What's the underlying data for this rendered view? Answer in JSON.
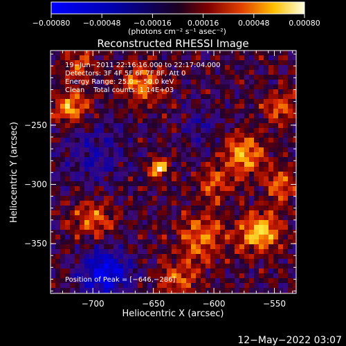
{
  "chart_data": {
    "type": "heatmap",
    "title": "Reconstructed RHESSI Image",
    "xlabel": "Heliocentric X (arcsec)",
    "ylabel": "Heliocentric Y (arcsec)",
    "xlim": [
      -735,
      -532
    ],
    "ylim": [
      -392,
      -187
    ],
    "x_ticks": [
      -700,
      -650,
      -600,
      -550
    ],
    "y_ticks": [
      -250,
      -300,
      -350
    ],
    "x_tick_labels": [
      "−700",
      "−650",
      "−600",
      "−550"
    ],
    "y_tick_labels": [
      "−250",
      "−300",
      "−350"
    ],
    "colorbar": {
      "range": [
        -0.0008,
        0.0008
      ],
      "ticks": [
        -0.0008,
        -0.00048,
        -0.00016,
        0.00016,
        0.00048,
        0.0008
      ],
      "tick_labels": [
        "−0.00080",
        "−0.00048",
        "−0.00016",
        "0.00016",
        "0.00048",
        "0.00080"
      ],
      "unit_label": "(photons cm⁻² s⁻¹ asec⁻²)"
    },
    "annotations": [
      "19−Jun−2011 22:16:16.000 to 22:17:04.000",
      "Detectors: 3F 4F 5F 6F 7F 8F, Att 0",
      "Energy Range: 25.0 − 50.0 keV",
      "Clean    Total counts: 1.14E+03"
    ],
    "peak_label": "Position of Peak = [−646,−286]",
    "peak": [
      -646,
      -286
    ],
    "sources": [
      {
        "x": -646,
        "y": -286,
        "amp": 1.0,
        "sigma": 5
      },
      {
        "x": -562,
        "y": -340,
        "amp": 0.85,
        "sigma": 12
      },
      {
        "x": -575,
        "y": -275,
        "amp": 0.7,
        "sigma": 12
      },
      {
        "x": -718,
        "y": -235,
        "amp": 0.7,
        "sigma": 10
      },
      {
        "x": -610,
        "y": -345,
        "amp": 0.55,
        "sigma": 14
      },
      {
        "x": -660,
        "y": -215,
        "amp": 0.6,
        "sigma": 12
      },
      {
        "x": -700,
        "y": -330,
        "amp": 0.5,
        "sigma": 12
      },
      {
        "x": -600,
        "y": -300,
        "amp": 0.45,
        "sigma": 10
      },
      {
        "x": -545,
        "y": -235,
        "amp": 0.5,
        "sigma": 10
      },
      {
        "x": -710,
        "y": -200,
        "amp": 0.45,
        "sigma": 10
      },
      {
        "x": -630,
        "y": -380,
        "amp": 0.45,
        "sigma": 12
      },
      {
        "x": -545,
        "y": -300,
        "amp": 0.55,
        "sigma": 10
      }
    ],
    "negative_regions": [
      {
        "x": -690,
        "y": -375,
        "amp": 0.9,
        "sigma": 14
      },
      {
        "x": -700,
        "y": -275,
        "amp": 0.35,
        "sigma": 18
      },
      {
        "x": -610,
        "y": -250,
        "amp": 0.25,
        "sigma": 12
      }
    ]
  },
  "footer": {
    "timestamp": "12−May−2022 03:07"
  }
}
